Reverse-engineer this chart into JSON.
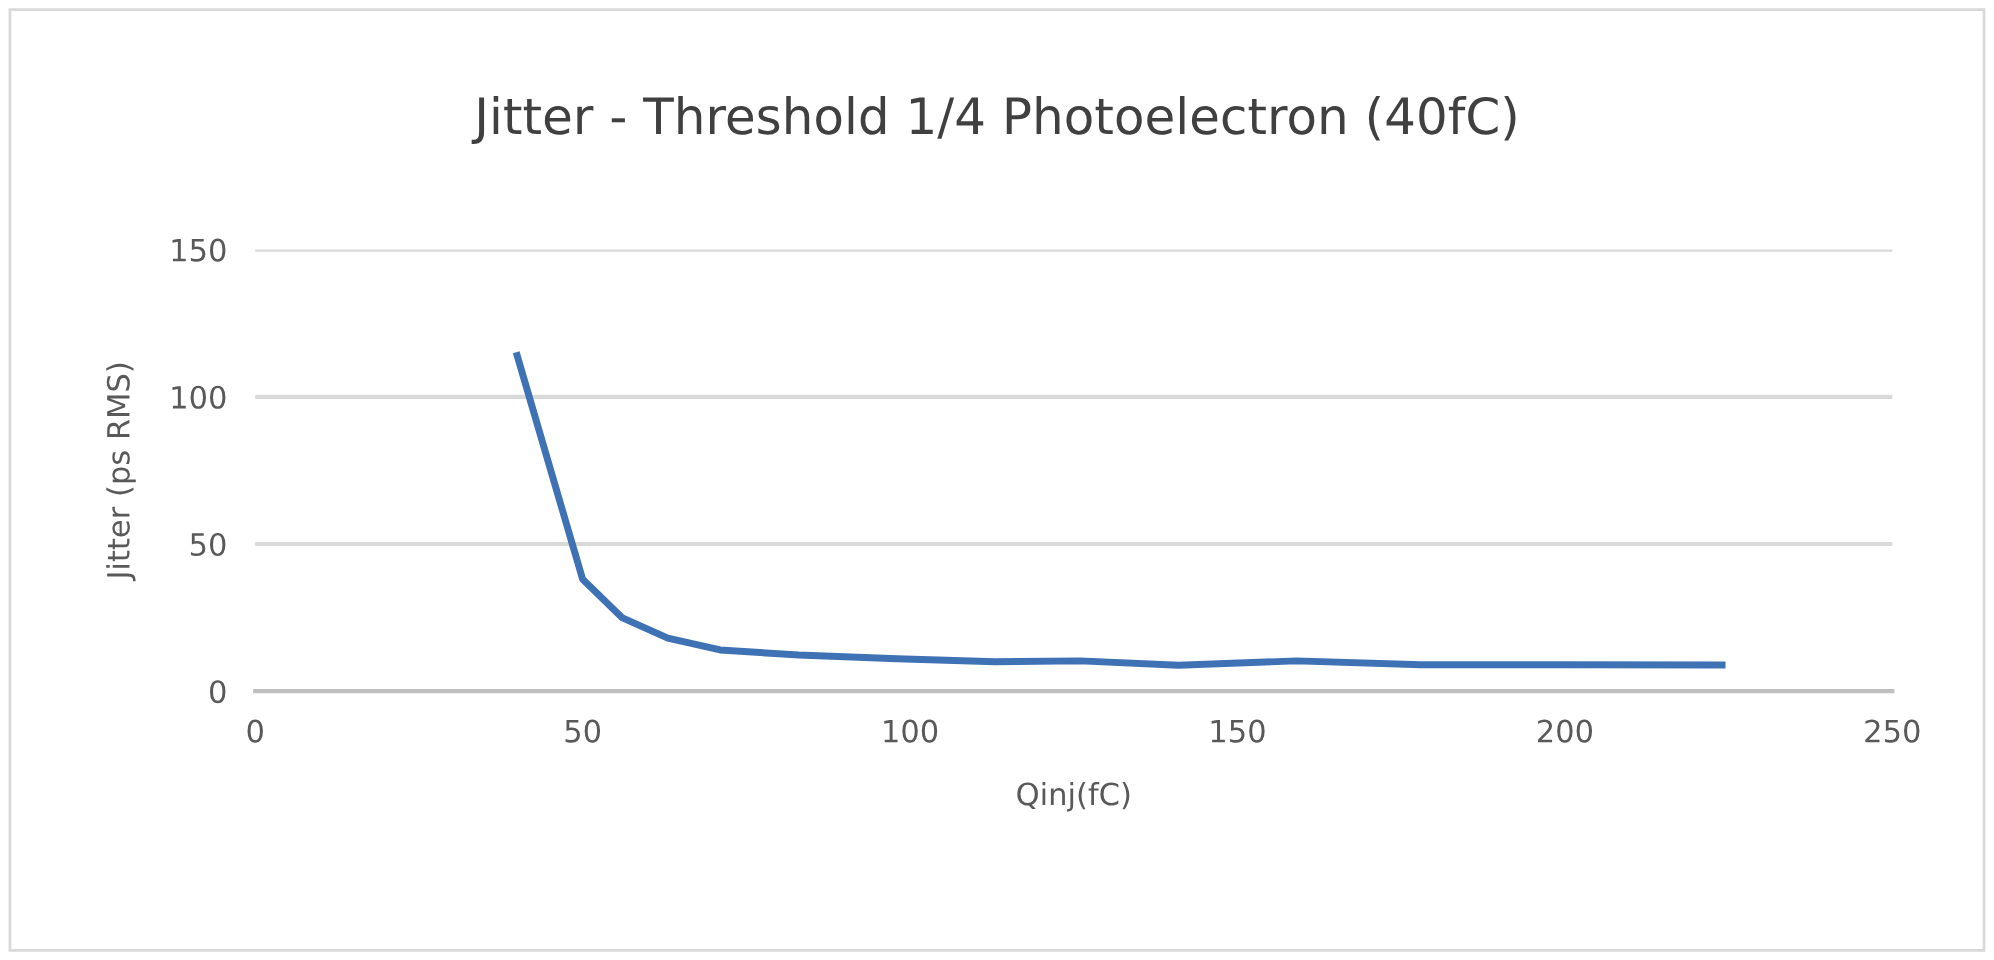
{
  "chart_data": {
    "type": "line",
    "title": "Jitter - Threshold 1/4 Photoelectron (40fC)",
    "xlabel": "Qinj(fC)",
    "ylabel": "Jitter (ps RMS)",
    "x": [
      40,
      50,
      56,
      63,
      71,
      83,
      98,
      113,
      126,
      141,
      159,
      178,
      200,
      224
    ],
    "series": [
      {
        "color": "#3f72b5",
        "values": [
          114,
          38,
          25,
          18,
          14,
          12.3,
          11,
          10,
          10.3,
          8.8,
          10.3,
          9,
          9,
          8.9
        ]
      }
    ],
    "xlim": [
      0,
      250
    ],
    "xticks": [
      0,
      50,
      100,
      150,
      200,
      250
    ],
    "ylim": [
      0,
      150
    ],
    "yticks": [
      0,
      50,
      100,
      150
    ],
    "grid": "y",
    "legend": false,
    "marker": "none",
    "line_style": "solid"
  }
}
